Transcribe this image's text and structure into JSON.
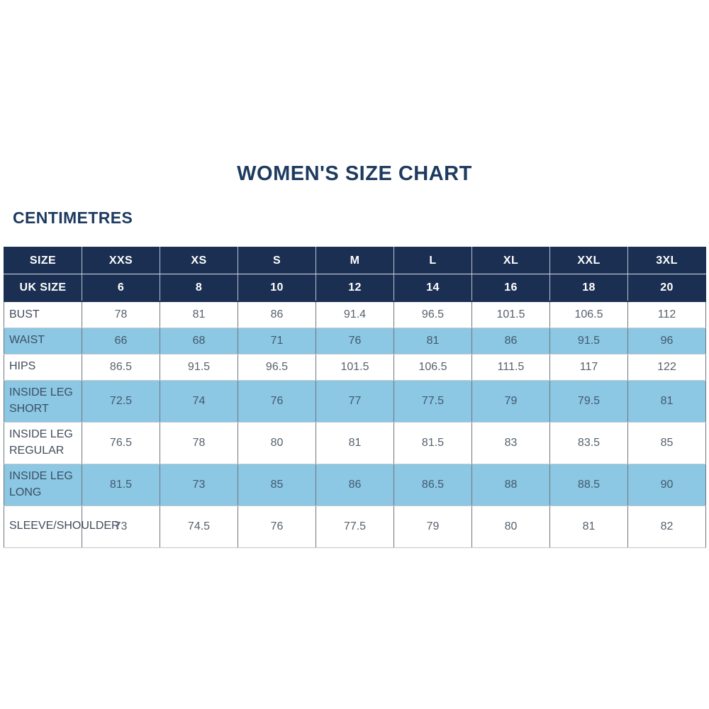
{
  "title": "WOMEN'S SIZE CHART",
  "unit_label": "CENTIMETRES",
  "colors": {
    "title_navy": "#1d3a5f",
    "header_navy": "#1b2f52",
    "header_text": "#ffffff",
    "row_blue": "#8cc7e4",
    "row_white": "#ffffff",
    "body_text": "#57616d",
    "label_text": "#414c5a",
    "border_gray": "#70757c"
  },
  "chart_data": {
    "type": "table",
    "title": "WOMEN'S SIZE CHART",
    "unit": "CENTIMETRES",
    "columns": [
      "SIZE",
      "XXS",
      "XS",
      "S",
      "M",
      "L",
      "XL",
      "XXL",
      "3XL"
    ],
    "uk_size_row": [
      "UK SIZE",
      "6",
      "8",
      "10",
      "12",
      "14",
      "16",
      "18",
      "20"
    ],
    "rows": [
      {
        "label": "BUST",
        "values": [
          "78",
          "81",
          "86",
          "91.4",
          "96.5",
          "101.5",
          "106.5",
          "112"
        ]
      },
      {
        "label": "WAIST",
        "values": [
          "66",
          "68",
          "71",
          "76",
          "81",
          "86",
          "91.5",
          "96"
        ]
      },
      {
        "label": "HIPS",
        "values": [
          "86.5",
          "91.5",
          "96.5",
          "101.5",
          "106.5",
          "111.5",
          "117",
          "122"
        ]
      },
      {
        "label": "INSIDE LEG SHORT",
        "values": [
          "72.5",
          "74",
          "76",
          "77",
          "77.5",
          "79",
          "79.5",
          "81"
        ]
      },
      {
        "label": "INSIDE LEG REGULAR",
        "values": [
          "76.5",
          "78",
          "80",
          "81",
          "81.5",
          "83",
          "83.5",
          "85"
        ]
      },
      {
        "label": "INSIDE LEG LONG",
        "values": [
          "81.5",
          "73",
          "85",
          "86",
          "86.5",
          "88",
          "88.5",
          "90"
        ]
      },
      {
        "label": "SLEEVE/SHOULDER",
        "values": [
          "73",
          "74.5",
          "76",
          "77.5",
          "79",
          "80",
          "81",
          "82"
        ]
      }
    ]
  }
}
